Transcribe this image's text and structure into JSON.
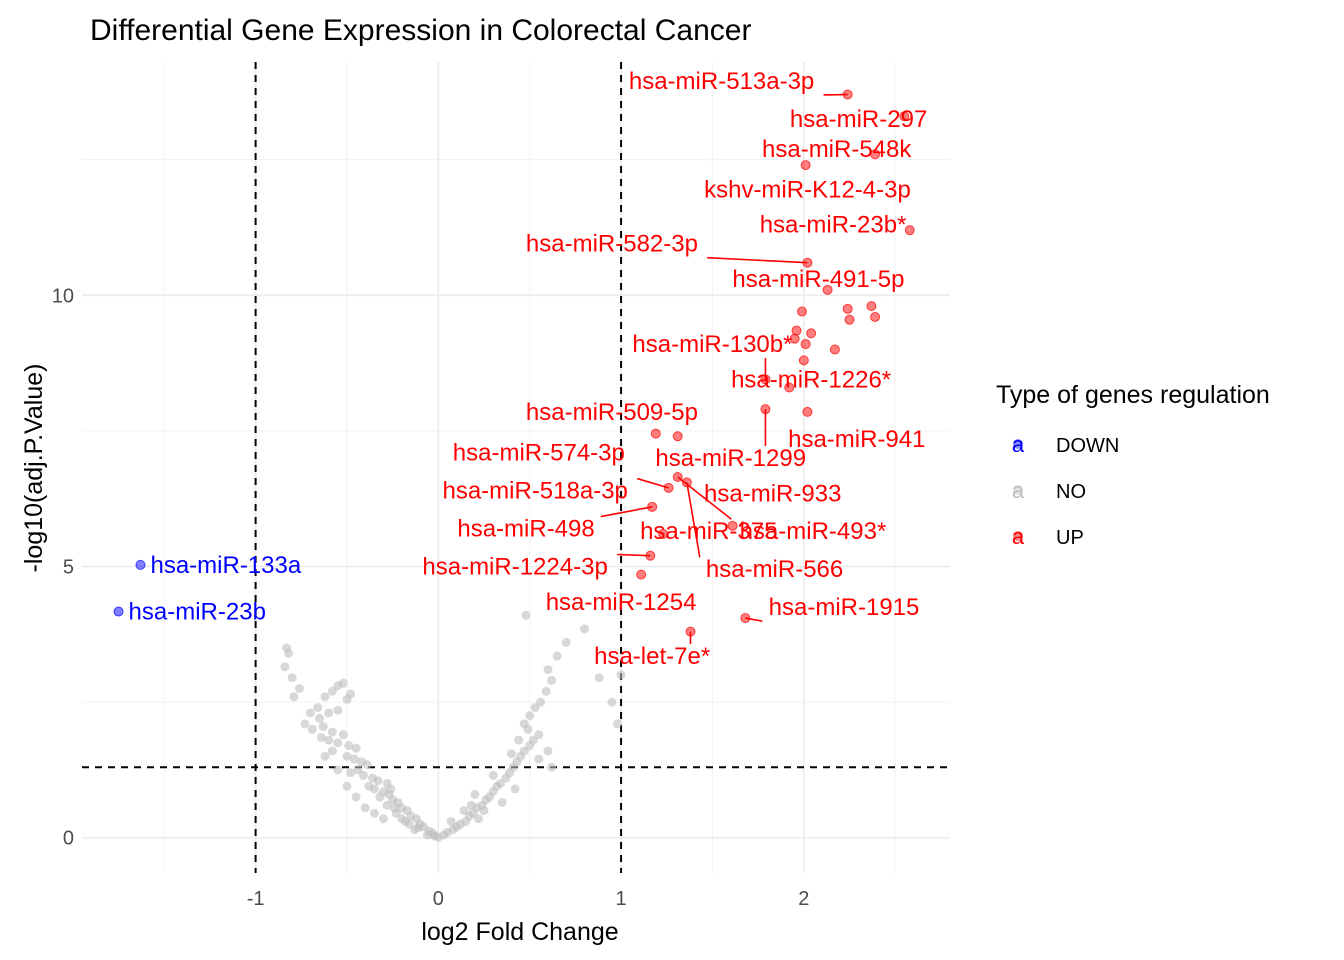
{
  "chart_data": {
    "type": "scatter",
    "title": "Differential Gene Expression in Colorectal Cancer",
    "xlabel": "log2 Fold Change",
    "ylabel": "-log10(adj.P.Value)",
    "xlim": [
      -1.95,
      2.8
    ],
    "ylim": [
      -0.65,
      14.3
    ],
    "x_ticks": [
      -1,
      0,
      1,
      2
    ],
    "x_tick_labels": [
      "-1",
      "0",
      "1",
      "2"
    ],
    "y_ticks": [
      0,
      5,
      10
    ],
    "y_tick_labels": [
      "0",
      "5",
      "10"
    ],
    "grid": true,
    "thresholds": {
      "vlines": [
        -1,
        1
      ],
      "hline": 1.3
    },
    "legend": {
      "title": "Type of genes regulation",
      "position": "right",
      "key_glyph": "a",
      "items": [
        {
          "label": "DOWN",
          "color": "#0000ff"
        },
        {
          "label": "NO",
          "color": "#bebebe"
        },
        {
          "label": "UP",
          "color": "#ff0000"
        }
      ]
    },
    "colors": {
      "DOWN": "#0000ff",
      "NO": "#bebebe",
      "UP": "#ff0000"
    },
    "series": [
      {
        "name": "DOWN",
        "points": [
          {
            "x": -1.63,
            "y": 5.03,
            "label": "hsa-miR-133a"
          },
          {
            "x": -1.75,
            "y": 4.17,
            "label": "hsa-miR-23b"
          }
        ]
      },
      {
        "name": "UP",
        "points": [
          {
            "x": 2.24,
            "y": 13.7,
            "label": "hsa-miR-513a-3p"
          },
          {
            "x": 2.55,
            "y": 13.3,
            "label": "hsa-miR-297"
          },
          {
            "x": 2.39,
            "y": 12.6,
            "label": "hsa-miR-548k"
          },
          {
            "x": 2.01,
            "y": 12.4,
            "label": ""
          },
          {
            "x": 2.58,
            "y": 11.2,
            "label": ""
          },
          {
            "x": 2.02,
            "y": 10.6,
            "label": "hsa-miR-582-3p"
          },
          {
            "x": 2.13,
            "y": 10.1,
            "label": ""
          },
          {
            "x": 1.99,
            "y": 9.7,
            "label": ""
          },
          {
            "x": 2.24,
            "y": 9.75,
            "label": ""
          },
          {
            "x": 2.25,
            "y": 9.55,
            "label": ""
          },
          {
            "x": 2.37,
            "y": 9.8,
            "label": ""
          },
          {
            "x": 2.39,
            "y": 9.6,
            "label": ""
          },
          {
            "x": 1.96,
            "y": 9.35,
            "label": ""
          },
          {
            "x": 1.95,
            "y": 9.2,
            "label": ""
          },
          {
            "x": 2.04,
            "y": 9.3,
            "label": ""
          },
          {
            "x": 2.01,
            "y": 9.1,
            "label": ""
          },
          {
            "x": 2.17,
            "y": 9.0,
            "label": ""
          },
          {
            "x": 2.0,
            "y": 8.8,
            "label": ""
          },
          {
            "x": 1.79,
            "y": 8.45,
            "label": "hsa-miR-130b*"
          },
          {
            "x": 1.92,
            "y": 8.3,
            "label": ""
          },
          {
            "x": 1.79,
            "y": 7.9,
            "label": "hsa-miR-1299"
          },
          {
            "x": 2.02,
            "y": 7.85,
            "label": ""
          },
          {
            "x": 1.19,
            "y": 7.45,
            "label": ""
          },
          {
            "x": 1.31,
            "y": 7.4,
            "label": ""
          },
          {
            "x": 1.31,
            "y": 6.65,
            "label": "hsa-miR-493*"
          },
          {
            "x": 1.36,
            "y": 6.55,
            "label": "hsa-miR-566"
          },
          {
            "x": 1.26,
            "y": 6.45,
            "label": "hsa-miR-518a-3p"
          },
          {
            "x": 1.17,
            "y": 6.1,
            "label": "hsa-miR-498"
          },
          {
            "x": 1.61,
            "y": 5.75,
            "label": ""
          },
          {
            "x": 1.23,
            "y": 5.6,
            "label": "hsa-miR-375"
          },
          {
            "x": 1.16,
            "y": 5.2,
            "label": "hsa-miR-1224-3p"
          },
          {
            "x": 1.11,
            "y": 4.85,
            "label": ""
          },
          {
            "x": 1.68,
            "y": 4.05,
            "label": "hsa-miR-1915"
          },
          {
            "x": 1.38,
            "y": 3.8,
            "label": "hsa-let-7e*"
          }
        ]
      }
    ],
    "up_label_positions": [
      {
        "label": "hsa-miR-513a-3p",
        "lx": 1.55,
        "ly": 13.95
      },
      {
        "label": "hsa-miR-297",
        "lx": 2.3,
        "ly": 13.25
      },
      {
        "label": "hsa-miR-548k",
        "lx": 2.18,
        "ly": 12.7
      },
      {
        "label": "kshv-miR-K12-4-3p",
        "lx": 2.02,
        "ly": 11.95
      },
      {
        "label": "hsa-miR-23b*",
        "lx": 2.16,
        "ly": 11.3
      },
      {
        "label": "hsa-miR-582-3p",
        "lx": 0.95,
        "ly": 10.95
      },
      {
        "label": "hsa-miR-491-5p",
        "lx": 2.08,
        "ly": 10.3
      },
      {
        "label": "hsa-miR-130b*",
        "lx": 1.5,
        "ly": 9.1
      },
      {
        "label": "hsa-miR-1226*",
        "lx": 2.04,
        "ly": 8.45
      },
      {
        "label": "hsa-miR-509-5p",
        "lx": 0.95,
        "ly": 7.85
      },
      {
        "label": "hsa-miR-941",
        "lx": 2.29,
        "ly": 7.35
      },
      {
        "label": "hsa-miR-574-3p",
        "lx": 0.55,
        "ly": 7.1
      },
      {
        "label": "hsa-miR-1299",
        "lx": 1.6,
        "ly": 7.0
      },
      {
        "label": "hsa-miR-518a-3p",
        "lx": 0.53,
        "ly": 6.4
      },
      {
        "label": "hsa-miR-933",
        "lx": 1.83,
        "ly": 6.35
      },
      {
        "label": "hsa-miR-498",
        "lx": 0.48,
        "ly": 5.7
      },
      {
        "label": "hsa-miR-375",
        "lx": 1.48,
        "ly": 5.65
      },
      {
        "label": "hsa-miR-493*",
        "lx": 2.05,
        "ly": 5.65
      },
      {
        "label": "hsa-miR-1224-3p",
        "lx": 0.42,
        "ly": 5.0
      },
      {
        "label": "hsa-miR-566",
        "lx": 1.84,
        "ly": 4.95
      },
      {
        "label": "hsa-miR-1254",
        "lx": 1.0,
        "ly": 4.35
      },
      {
        "label": "hsa-miR-1915",
        "lx": 2.22,
        "ly": 4.25
      },
      {
        "label": "hsa-let-7e*",
        "lx": 1.17,
        "ly": 3.35
      }
    ],
    "ns_points": [
      [
        -0.83,
        3.5
      ],
      [
        -0.82,
        3.4
      ],
      [
        -0.84,
        3.15
      ],
      [
        -0.8,
        2.95
      ],
      [
        -0.76,
        2.75
      ],
      [
        -0.79,
        2.6
      ],
      [
        -0.52,
        2.85
      ],
      [
        -0.55,
        2.8
      ],
      [
        -0.48,
        2.65
      ],
      [
        -0.58,
        2.7
      ],
      [
        -0.62,
        2.6
      ],
      [
        -0.5,
        2.55
      ],
      [
        -0.66,
        2.4
      ],
      [
        -0.7,
        2.3
      ],
      [
        -0.65,
        2.2
      ],
      [
        -0.6,
        2.3
      ],
      [
        -0.55,
        2.35
      ],
      [
        -0.73,
        2.1
      ],
      [
        -0.69,
        2.0
      ],
      [
        -0.63,
        2.05
      ],
      [
        -0.58,
        1.95
      ],
      [
        -0.64,
        1.85
      ],
      [
        -0.6,
        1.8
      ],
      [
        -0.55,
        1.75
      ],
      [
        -0.52,
        1.9
      ],
      [
        -0.49,
        1.7
      ],
      [
        -0.45,
        1.65
      ],
      [
        -0.58,
        1.6
      ],
      [
        -0.62,
        1.5
      ],
      [
        -0.5,
        1.5
      ],
      [
        -0.46,
        1.45
      ],
      [
        -0.42,
        1.4
      ],
      [
        -0.39,
        1.35
      ],
      [
        -0.44,
        1.25
      ],
      [
        -0.48,
        1.2
      ],
      [
        -0.41,
        1.15
      ],
      [
        -0.36,
        1.1
      ],
      [
        -0.33,
        1.05
      ],
      [
        -0.38,
        0.95
      ],
      [
        -0.35,
        0.9
      ],
      [
        -0.3,
        0.85
      ],
      [
        -0.27,
        0.8
      ],
      [
        -0.32,
        0.75
      ],
      [
        -0.25,
        0.7
      ],
      [
        -0.22,
        0.65
      ],
      [
        -0.28,
        0.6
      ],
      [
        -0.2,
        0.55
      ],
      [
        -0.17,
        0.5
      ],
      [
        -0.23,
        0.45
      ],
      [
        -0.15,
        0.4
      ],
      [
        -0.12,
        0.35
      ],
      [
        -0.18,
        0.3
      ],
      [
        -0.1,
        0.25
      ],
      [
        -0.08,
        0.2
      ],
      [
        -0.13,
        0.15
      ],
      [
        -0.05,
        0.12
      ],
      [
        -0.03,
        0.08
      ],
      [
        -0.06,
        0.05
      ],
      [
        -0.02,
        0.03
      ],
      [
        0.0,
        0.01
      ],
      [
        -0.4,
        0.55
      ],
      [
        -0.45,
        0.75
      ],
      [
        -0.5,
        0.95
      ],
      [
        -0.55,
        1.25
      ],
      [
        -0.35,
        0.45
      ],
      [
        -0.3,
        0.35
      ],
      [
        -0.28,
        1.0
      ],
      [
        -0.26,
        0.9
      ],
      [
        -0.24,
        0.55
      ],
      [
        -0.2,
        0.35
      ],
      [
        -0.16,
        0.25
      ],
      [
        -0.11,
        0.18
      ],
      [
        0.03,
        0.05
      ],
      [
        0.05,
        0.1
      ],
      [
        0.08,
        0.15
      ],
      [
        0.1,
        0.2
      ],
      [
        0.12,
        0.25
      ],
      [
        0.15,
        0.3
      ],
      [
        0.17,
        0.4
      ],
      [
        0.19,
        0.45
      ],
      [
        0.21,
        0.55
      ],
      [
        0.24,
        0.6
      ],
      [
        0.26,
        0.7
      ],
      [
        0.28,
        0.75
      ],
      [
        0.3,
        0.85
      ],
      [
        0.32,
        0.95
      ],
      [
        0.34,
        1.0
      ],
      [
        0.37,
        1.1
      ],
      [
        0.39,
        1.2
      ],
      [
        0.41,
        1.3
      ],
      [
        0.43,
        1.4
      ],
      [
        0.45,
        1.5
      ],
      [
        0.47,
        1.6
      ],
      [
        0.5,
        1.7
      ],
      [
        0.52,
        1.8
      ],
      [
        0.55,
        1.9
      ],
      [
        0.49,
        2.0
      ],
      [
        0.47,
        2.1
      ],
      [
        0.5,
        2.25
      ],
      [
        0.53,
        2.4
      ],
      [
        0.56,
        2.5
      ],
      [
        0.59,
        2.7
      ],
      [
        0.62,
        2.9
      ],
      [
        0.6,
        3.1
      ],
      [
        0.65,
        3.35
      ],
      [
        0.7,
        3.6
      ],
      [
        0.8,
        3.85
      ],
      [
        0.88,
        2.95
      ],
      [
        0.95,
        2.5
      ],
      [
        1.0,
        3.0
      ],
      [
        0.98,
        2.1
      ],
      [
        0.55,
        1.45
      ],
      [
        0.6,
        1.6
      ],
      [
        0.35,
        0.65
      ],
      [
        0.25,
        0.5
      ],
      [
        0.22,
        0.35
      ],
      [
        0.2,
        0.8
      ],
      [
        0.18,
        0.6
      ],
      [
        0.3,
        1.15
      ],
      [
        0.4,
        1.55
      ],
      [
        0.44,
        1.8
      ],
      [
        0.42,
        0.9
      ],
      [
        0.14,
        0.5
      ],
      [
        0.48,
        4.1
      ],
      [
        0.62,
        1.3
      ],
      [
        0.07,
        0.3
      ]
    ]
  }
}
